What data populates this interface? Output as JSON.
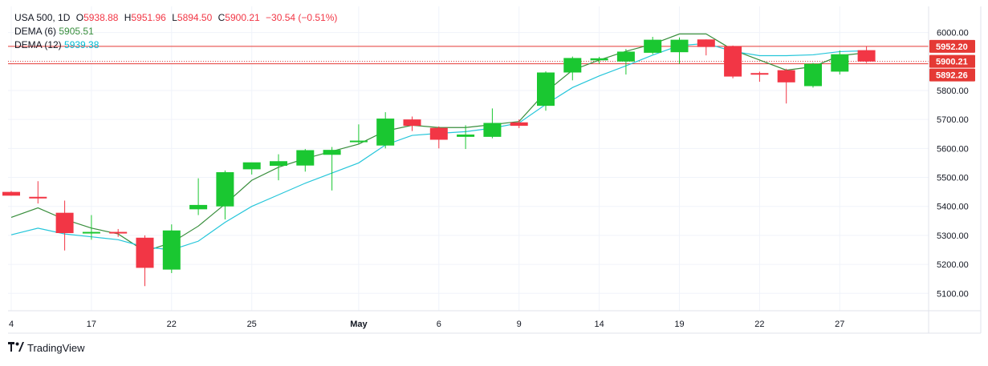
{
  "legend": {
    "symbol": "USA 500, 1D",
    "o_label": "O",
    "o_value": "5938.88",
    "h_label": "H",
    "h_value": "5951.96",
    "l_label": "L",
    "l_value": "5894.50",
    "c_label": "C",
    "c_value": "5900.21",
    "change": "−30.54 (−0.51%)",
    "dema6_label": "DEMA (6)",
    "dema6_value": "5905.51",
    "dema12_label": "DEMA (12)",
    "dema12_value": "5939.38"
  },
  "brand": {
    "name": "TradingView"
  },
  "colors": {
    "up": "#1ac731",
    "down": "#f23645",
    "dema6": "#388e3c",
    "dema12": "#26c6da",
    "grid": "#f0f3fa",
    "axis_text": "#131722",
    "hline": "#e53935"
  },
  "chart_data": {
    "type": "candlestick",
    "ylim": [
      5040,
      6090
    ],
    "y_ticks": [
      5100,
      5200,
      5300,
      5400,
      5500,
      5600,
      5700,
      5800,
      5900,
      6000
    ],
    "y_tick_labels": [
      "5100.00",
      "5200.00",
      "5300.00",
      "5400.00",
      "5500.00",
      "5600.00",
      "5700.00",
      "5800.00",
      "5900.00",
      "6000.00"
    ],
    "x_ticks": [
      {
        "i": 0,
        "label": "4"
      },
      {
        "i": 3,
        "label": "17"
      },
      {
        "i": 6,
        "label": "22"
      },
      {
        "i": 9,
        "label": "25"
      },
      {
        "i": 13,
        "label": "May"
      },
      {
        "i": 16,
        "label": "6"
      },
      {
        "i": 19,
        "label": "9"
      },
      {
        "i": 22,
        "label": "14"
      },
      {
        "i": 25,
        "label": "19"
      },
      {
        "i": 28,
        "label": "22"
      },
      {
        "i": 31,
        "label": "27"
      }
    ],
    "candles": [
      {
        "o": 5450,
        "h": 5453,
        "l": 5437,
        "c": 5437
      },
      {
        "o": 5433,
        "h": 5487,
        "l": 5410,
        "c": 5430
      },
      {
        "o": 5378,
        "h": 5420,
        "l": 5248,
        "c": 5308
      },
      {
        "o": 5308,
        "h": 5370,
        "l": 5285,
        "c": 5312
      },
      {
        "o": 5312,
        "h": 5322,
        "l": 5295,
        "c": 5309
      },
      {
        "o": 5292,
        "h": 5300,
        "l": 5125,
        "c": 5188
      },
      {
        "o": 5182,
        "h": 5338,
        "l": 5170,
        "c": 5317
      },
      {
        "o": 5390,
        "h": 5497,
        "l": 5370,
        "c": 5405
      },
      {
        "o": 5400,
        "h": 5524,
        "l": 5355,
        "c": 5518
      },
      {
        "o": 5528,
        "h": 5551,
        "l": 5510,
        "c": 5552
      },
      {
        "o": 5540,
        "h": 5580,
        "l": 5490,
        "c": 5556
      },
      {
        "o": 5541,
        "h": 5598,
        "l": 5520,
        "c": 5594
      },
      {
        "o": 5578,
        "h": 5605,
        "l": 5455,
        "c": 5595
      },
      {
        "o": 5622,
        "h": 5683,
        "l": 5615,
        "c": 5627
      },
      {
        "o": 5610,
        "h": 5725,
        "l": 5600,
        "c": 5703
      },
      {
        "o": 5700,
        "h": 5710,
        "l": 5660,
        "c": 5678
      },
      {
        "o": 5671,
        "h": 5676,
        "l": 5600,
        "c": 5630
      },
      {
        "o": 5640,
        "h": 5680,
        "l": 5598,
        "c": 5648
      },
      {
        "o": 5640,
        "h": 5738,
        "l": 5635,
        "c": 5688
      },
      {
        "o": 5690,
        "h": 5700,
        "l": 5670,
        "c": 5678
      },
      {
        "o": 5747,
        "h": 5866,
        "l": 5730,
        "c": 5862
      },
      {
        "o": 5862,
        "h": 5917,
        "l": 5835,
        "c": 5912
      },
      {
        "o": 5904,
        "h": 5916,
        "l": 5892,
        "c": 5911
      },
      {
        "o": 5900,
        "h": 5943,
        "l": 5855,
        "c": 5934
      },
      {
        "o": 5930,
        "h": 5985,
        "l": 5925,
        "c": 5975
      },
      {
        "o": 5932,
        "h": 5983,
        "l": 5892,
        "c": 5975
      },
      {
        "o": 5976,
        "h": 5976,
        "l": 5921,
        "c": 5950
      },
      {
        "o": 5953,
        "h": 5955,
        "l": 5842,
        "c": 5848
      },
      {
        "o": 5860,
        "h": 5865,
        "l": 5830,
        "c": 5855
      },
      {
        "o": 5870,
        "h": 5875,
        "l": 5755,
        "c": 5828
      },
      {
        "o": 5815,
        "h": 5895,
        "l": 5810,
        "c": 5892
      },
      {
        "o": 5865,
        "h": 5938,
        "l": 5855,
        "c": 5925
      },
      {
        "o": 5939,
        "h": 5952,
        "l": 5895,
        "c": 5900
      }
    ],
    "series": [
      {
        "name": "DEMA (6)",
        "values": [
          5362,
          5395,
          5355,
          5325,
          5305,
          5245,
          5275,
          5332,
          5408,
          5490,
          5535,
          5565,
          5590,
          5615,
          5660,
          5680,
          5672,
          5672,
          5682,
          5693,
          5795,
          5870,
          5905,
          5935,
          5960,
          5995,
          5995,
          5940,
          5905,
          5870,
          5882,
          5920,
          5930
        ]
      },
      {
        "name": "DEMA (12)",
        "values": [
          5302,
          5325,
          5305,
          5295,
          5285,
          5260,
          5250,
          5280,
          5345,
          5400,
          5440,
          5480,
          5515,
          5550,
          5612,
          5645,
          5652,
          5658,
          5670,
          5688,
          5752,
          5810,
          5850,
          5885,
          5922,
          5955,
          5962,
          5935,
          5920,
          5920,
          5923,
          5934,
          5937
        ]
      }
    ],
    "price_labels": [
      {
        "value": 5952.2,
        "label": "5952.20",
        "style": "line"
      },
      {
        "value": 5900.21,
        "label": "5900.21",
        "style": "dotted"
      },
      {
        "value": 5892.26,
        "label": "5892.26",
        "style": "line"
      }
    ]
  }
}
